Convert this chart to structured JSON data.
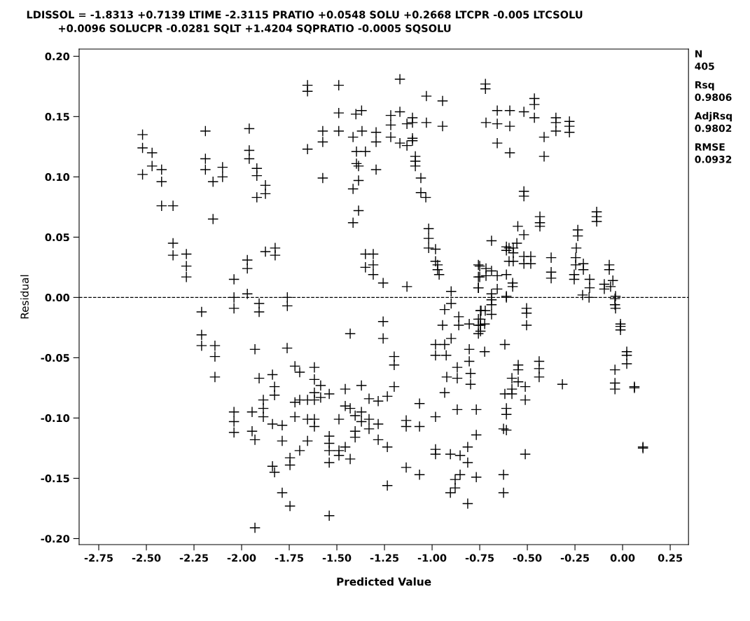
{
  "chart_data": {
    "type": "scatter",
    "title": "LDISSOL = -1.8313 +0.7139 LTIME -2.3115 PRATIO +0.0548 SOLU +0.2668 LTCPR -0.005 LTCSOLU",
    "subtitle": "+0.0096 SOLUCPR -0.0281 SQLT +1.4204 SQPRATIO -0.0005 SQSOLU",
    "xlabel": "Predicted Value",
    "ylabel": "Residual",
    "annotations": [
      "N",
      "405",
      "Rsq",
      "0.9806",
      "AdjRsq",
      "0.9802",
      "RMSE",
      "0.0932"
    ],
    "marker": "cross",
    "grid": false,
    "xlim": [
      -2.853,
      0.346
    ],
    "ylim": [
      -0.205,
      0.206
    ],
    "xticks": [
      {
        "value": -2.75,
        "label": "-2.75"
      },
      {
        "value": -2.5,
        "label": "-2.50"
      },
      {
        "value": -2.25,
        "label": "-2.25"
      },
      {
        "value": -2.0,
        "label": "-2.00"
      },
      {
        "value": -1.75,
        "label": "-1.75"
      },
      {
        "value": -1.5,
        "label": "-1.50"
      },
      {
        "value": -1.25,
        "label": "-1.25"
      },
      {
        "value": -1.0,
        "label": "-1.00"
      },
      {
        "value": -0.75,
        "label": "-0.75"
      },
      {
        "value": -0.5,
        "label": "-0.50"
      },
      {
        "value": -0.25,
        "label": "-0.25"
      },
      {
        "value": 0.0,
        "label": "0.00"
      },
      {
        "value": 0.25,
        "label": "0.25"
      }
    ],
    "yticks": [
      {
        "value": -0.2,
        "label": "-0.20"
      },
      {
        "value": -0.15,
        "label": "-0.15"
      },
      {
        "value": -0.1,
        "label": "-0.10"
      },
      {
        "value": -0.05,
        "label": "-0.05"
      },
      {
        "value": 0.0,
        "label": "0.00"
      },
      {
        "value": 0.05,
        "label": "0.05"
      },
      {
        "value": 0.1,
        "label": "0.10"
      },
      {
        "value": 0.15,
        "label": "0.15"
      },
      {
        "value": 0.2,
        "label": "0.20"
      }
    ],
    "ref_lines": [
      {
        "axis": "y",
        "value": 0,
        "line_style": "dashed",
        "color": "#000000"
      }
    ],
    "series": [
      {
        "color": "#000000",
        "x": [
          -2.52,
          -2.52,
          -2.52,
          -2.47,
          -2.47,
          -2.42,
          -2.42,
          -2.42,
          -2.36,
          -2.36,
          -2.36,
          -2.29,
          -2.29,
          -2.29,
          -2.19,
          -2.19,
          -2.19,
          -2.15,
          -2.15,
          -2.1,
          -2.1,
          -2.04,
          -2.04,
          -2.04,
          -1.96,
          -1.96,
          -1.96,
          -1.97,
          -1.97,
          -1.97,
          -1.92,
          -1.92,
          -1.92,
          -2.21,
          -2.21,
          -2.21,
          -2.14,
          -2.14,
          -2.14,
          -2.04,
          -2.04,
          -2.04,
          -1.945,
          -1.945,
          -1.93,
          -1.93,
          -1.93,
          -1.908,
          -1.908,
          -1.908,
          -1.875,
          -1.875,
          -1.875,
          -1.824,
          -1.824,
          -1.76,
          -1.76,
          -1.654,
          -1.654,
          -1.654,
          -1.574,
          -1.574,
          -1.574,
          -1.49,
          -1.49,
          -1.49,
          -1.4,
          -1.37,
          -1.415,
          -1.368,
          -1.397,
          -1.35,
          -1.397,
          -1.386,
          -1.294,
          -1.386,
          -1.415,
          -1.386,
          -1.415,
          -1.294,
          -1.294,
          -1.217,
          -1.217,
          -1.217,
          -1.169,
          -1.169,
          -1.169,
          -1.132,
          -1.132,
          -1.103,
          -1.103,
          -1.103,
          -1.103,
          -1.03,
          -1.03,
          -0.945,
          -0.945,
          -1.088,
          -1.088,
          -1.088,
          -1.059,
          -1.059,
          -1.033,
          -1.018,
          -1.018,
          -1.018,
          -0.982,
          -0.982,
          -0.971,
          -0.971,
          -0.963,
          -0.9,
          -0.757,
          -0.757,
          -0.757,
          -1.35,
          -1.309,
          -1.35,
          -1.309,
          -1.309,
          -1.257,
          -1.132,
          -1.761,
          -1.838,
          -1.827,
          -1.827,
          -1.886,
          -1.886,
          -1.886,
          -1.838,
          -1.787,
          -1.787,
          -1.746,
          -1.746,
          -1.838,
          -1.827,
          -1.787,
          -1.746,
          -1.72,
          -1.695,
          -1.618,
          -1.618,
          -1.618,
          -1.618,
          -1.618,
          -1.618,
          -1.585,
          -1.585,
          -1.54,
          -1.72,
          -1.695,
          -1.654,
          -1.72,
          -1.654,
          -1.654,
          -1.695,
          -1.54,
          -1.54,
          -1.54,
          -1.54,
          -1.54,
          -1.489,
          -1.489,
          -1.489,
          -1.456,
          -1.43,
          -1.456,
          -1.456,
          -1.43,
          -1.43,
          -1.404,
          -1.371,
          -1.371,
          -1.404,
          -1.404,
          -1.371,
          -1.331,
          -1.283,
          -1.331,
          -1.331,
          -1.283,
          -1.283,
          -1.235,
          -1.235,
          -1.235,
          -1.257,
          -1.257,
          -1.199,
          -1.199,
          -1.199,
          -1.136,
          -1.136,
          -1.136,
          -1.066,
          -1.066,
          -1.066,
          -0.982,
          -0.982,
          -0.982,
          -0.934,
          -0.9,
          -0.945,
          -0.86,
          -0.86,
          -0.805,
          -0.982,
          -0.982,
          -0.934,
          -0.926,
          -0.9,
          -0.805,
          -0.868,
          -0.868,
          -0.805,
          -0.798,
          -0.798,
          -0.923,
          -0.934,
          -0.868,
          -0.768,
          -0.768,
          -0.904,
          -0.853,
          -0.813,
          -0.813,
          -0.853,
          -0.879,
          -0.879,
          -0.904,
          -0.768,
          -0.813,
          -0.746,
          -0.746,
          -0.746,
          -0.746,
          -0.72,
          -0.72,
          -0.658,
          -0.592,
          -0.518,
          -0.463,
          -0.463,
          -0.463,
          -0.717,
          -0.658,
          -0.592,
          -0.658,
          -0.592,
          -0.412,
          -0.412,
          -0.35,
          -0.35,
          -0.35,
          -0.279,
          -0.279,
          -0.279,
          -0.518,
          -0.518,
          -0.434,
          -0.434,
          -0.434,
          -0.136,
          -0.136,
          -0.136,
          -0.55,
          -0.518,
          -0.555,
          -0.688,
          -0.61,
          -0.61,
          -0.596,
          -0.574,
          -0.574,
          -0.596,
          -0.574,
          -0.518,
          -0.482,
          -0.518,
          -0.482,
          -0.375,
          -0.375,
          -0.375,
          -0.235,
          -0.235,
          -0.243,
          -0.246,
          -0.246,
          -0.254,
          -0.254,
          -0.206,
          -0.206,
          -0.173,
          -0.173,
          -0.07,
          -0.07,
          -0.051,
          -0.063,
          -0.096,
          -0.096,
          -0.75,
          -0.717,
          -0.688,
          -0.658,
          -0.61,
          -0.75,
          -0.717,
          -0.757,
          -0.658,
          -0.577,
          -0.577,
          -0.688,
          -0.61,
          -0.21,
          -0.176,
          -0.037,
          -0.688,
          -0.688,
          -0.688,
          -0.743,
          -0.721,
          -0.61,
          -0.757,
          -0.757,
          -0.724,
          -0.757,
          -0.724,
          -0.504,
          -0.504,
          -0.504,
          -0.618,
          -0.548,
          -0.548,
          -0.548,
          -0.581,
          -0.581,
          -0.581,
          -0.618,
          -0.511,
          -0.511,
          -0.438,
          -0.438,
          -0.438,
          -0.316,
          -0.04,
          -0.04,
          -0.04,
          -0.011,
          -0.011,
          -0.011,
          0.022,
          0.022,
          0.022,
          0.062,
          0.062,
          0.107,
          0.107,
          -0.04,
          -0.04,
          -0.037,
          -0.61,
          -0.61,
          -0.625,
          -0.61,
          -0.511,
          -0.625,
          -0.625
        ],
        "values": [
          0.135,
          0.124,
          0.102,
          0.12,
          0.109,
          0.106,
          0.096,
          0.076,
          0.076,
          0.045,
          0.035,
          0.036,
          0.026,
          0.017,
          0.138,
          0.115,
          0.106,
          0.096,
          0.065,
          0.108,
          0.1,
          0.015,
          0.0,
          -0.009,
          0.14,
          0.122,
          0.115,
          0.031,
          0.024,
          0.003,
          0.107,
          0.101,
          0.083,
          -0.012,
          -0.031,
          -0.04,
          -0.04,
          -0.049,
          -0.066,
          -0.095,
          -0.103,
          -0.112,
          -0.095,
          -0.111,
          -0.118,
          -0.043,
          -0.191,
          -0.005,
          -0.012,
          -0.067,
          0.093,
          0.086,
          0.038,
          0.041,
          0.035,
          0.0,
          -0.007,
          0.176,
          0.171,
          0.123,
          0.138,
          0.129,
          0.099,
          0.176,
          0.153,
          0.138,
          0.152,
          0.155,
          0.133,
          0.138,
          0.121,
          0.121,
          0.111,
          0.109,
          0.106,
          0.097,
          0.09,
          0.072,
          0.062,
          0.137,
          0.129,
          0.151,
          0.143,
          0.133,
          0.181,
          0.154,
          0.128,
          0.144,
          0.126,
          0.149,
          0.145,
          0.132,
          0.13,
          0.167,
          0.145,
          0.163,
          0.142,
          0.117,
          0.113,
          0.109,
          0.099,
          0.087,
          0.083,
          0.057,
          0.049,
          0.041,
          0.04,
          0.03,
          0.027,
          0.023,
          0.019,
          0.005,
          0.027,
          0.017,
          0.008,
          0.036,
          0.036,
          0.025,
          0.027,
          0.019,
          0.012,
          0.009,
          -0.042,
          -0.064,
          -0.074,
          -0.081,
          -0.085,
          -0.092,
          -0.099,
          -0.105,
          -0.106,
          -0.119,
          -0.133,
          -0.139,
          -0.14,
          -0.145,
          -0.162,
          -0.173,
          -0.057,
          -0.062,
          -0.058,
          -0.068,
          -0.079,
          -0.085,
          -0.101,
          -0.107,
          -0.073,
          -0.083,
          -0.08,
          -0.087,
          -0.085,
          -0.085,
          -0.099,
          -0.101,
          -0.119,
          -0.127,
          -0.115,
          -0.121,
          -0.127,
          -0.137,
          -0.181,
          -0.101,
          -0.127,
          -0.131,
          -0.124,
          -0.134,
          -0.076,
          -0.09,
          -0.092,
          -0.03,
          -0.098,
          -0.095,
          -0.103,
          -0.111,
          -0.116,
          -0.073,
          -0.084,
          -0.086,
          -0.101,
          -0.109,
          -0.105,
          -0.118,
          -0.082,
          -0.124,
          -0.156,
          -0.02,
          -0.034,
          -0.049,
          -0.056,
          -0.074,
          -0.102,
          -0.107,
          -0.141,
          -0.088,
          -0.107,
          -0.147,
          -0.099,
          -0.126,
          -0.13,
          -0.01,
          -0.005,
          -0.023,
          -0.016,
          -0.023,
          -0.022,
          -0.039,
          -0.048,
          -0.039,
          -0.048,
          -0.034,
          -0.043,
          -0.058,
          -0.067,
          -0.053,
          -0.063,
          -0.072,
          -0.066,
          -0.079,
          -0.093,
          -0.093,
          -0.114,
          -0.13,
          -0.131,
          -0.124,
          -0.137,
          -0.147,
          -0.151,
          -0.158,
          -0.162,
          -0.149,
          -0.171,
          -0.011,
          -0.018,
          -0.023,
          -0.028,
          0.177,
          0.173,
          0.155,
          0.155,
          0.154,
          0.165,
          0.16,
          0.149,
          0.145,
          0.144,
          0.142,
          0.128,
          0.12,
          0.133,
          0.117,
          0.149,
          0.145,
          0.138,
          0.146,
          0.142,
          0.137,
          0.088,
          0.084,
          0.067,
          0.062,
          0.059,
          0.071,
          0.067,
          0.063,
          0.059,
          0.052,
          0.045,
          0.047,
          0.042,
          0.039,
          0.041,
          0.041,
          0.037,
          0.03,
          0.03,
          0.034,
          0.034,
          0.028,
          0.028,
          0.033,
          0.021,
          0.016,
          0.056,
          0.051,
          0.041,
          0.033,
          0.027,
          0.019,
          0.015,
          0.028,
          0.023,
          0.015,
          0.008,
          0.027,
          0.023,
          0.014,
          0.009,
          0.011,
          0.007,
          0.026,
          0.024,
          0.022,
          0.018,
          0.019,
          0.017,
          0.018,
          0.008,
          0.007,
          0.012,
          0.009,
          0.003,
          0.001,
          0.002,
          0.0,
          0.001,
          -0.002,
          -0.006,
          -0.014,
          -0.011,
          -0.011,
          0.0,
          -0.018,
          -0.023,
          -0.022,
          -0.03,
          -0.045,
          -0.009,
          -0.013,
          -0.023,
          -0.039,
          -0.056,
          -0.06,
          -0.07,
          -0.067,
          -0.076,
          -0.08,
          -0.08,
          -0.074,
          -0.085,
          -0.053,
          -0.059,
          -0.066,
          -0.072,
          -0.06,
          -0.071,
          -0.076,
          -0.022,
          -0.024,
          -0.027,
          -0.045,
          -0.048,
          -0.055,
          -0.074,
          -0.075,
          -0.124,
          -0.125,
          -0.001,
          -0.006,
          -0.009,
          -0.092,
          -0.097,
          -0.109,
          -0.11,
          -0.13,
          -0.147,
          -0.162
        ]
      }
    ]
  }
}
